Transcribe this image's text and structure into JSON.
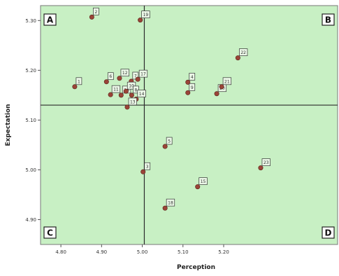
{
  "chart_data": {
    "type": "scatter",
    "xlabel": "Perception",
    "ylabel": "Expectation",
    "xlim": [
      4.75,
      5.48
    ],
    "ylim": [
      4.85,
      5.33
    ],
    "x_ticks": [
      {
        "value": 4.8,
        "label": "4.80"
      },
      {
        "value": 4.9,
        "label": "4.90"
      },
      {
        "value": 5.0,
        "label": "5.00"
      },
      {
        "value": 5.1,
        "label": "5.10"
      },
      {
        "value": 5.2,
        "label": "5.20"
      }
    ],
    "y_ticks": [
      {
        "value": 5.3,
        "label": "5.30"
      },
      {
        "value": 5.2,
        "label": "5.20"
      },
      {
        "value": 5.1,
        "label": "5.10"
      },
      {
        "value": 5.0,
        "label": "5.00"
      },
      {
        "value": 4.9,
        "label": "4.90"
      }
    ],
    "reference_lines": {
      "x": 5.005,
      "y": 5.13
    },
    "quadrants": [
      {
        "label": "A",
        "position": "top-left"
      },
      {
        "label": "B",
        "position": "top-right"
      },
      {
        "label": "C",
        "position": "bottom-left"
      },
      {
        "label": "D",
        "position": "bottom-right"
      }
    ],
    "grid": false,
    "points": [
      {
        "x": 4.834,
        "y": 5.167,
        "label": "1"
      },
      {
        "x": 4.876,
        "y": 5.307,
        "label": "2"
      },
      {
        "x": 4.995,
        "y": 5.301,
        "label": "19"
      },
      {
        "x": 4.912,
        "y": 5.177,
        "label": "6"
      },
      {
        "x": 4.944,
        "y": 5.184,
        "label": "12"
      },
      {
        "x": 4.973,
        "y": 5.178,
        "label": "7"
      },
      {
        "x": 4.989,
        "y": 5.182,
        "label": "17"
      },
      {
        "x": 4.922,
        "y": 5.151,
        "label": "11"
      },
      {
        "x": 4.948,
        "y": 5.15,
        "label": "16"
      },
      {
        "x": 4.96,
        "y": 5.158,
        "label": "10"
      },
      {
        "x": 4.974,
        "y": 5.15,
        "label": "8"
      },
      {
        "x": 4.985,
        "y": 5.142,
        "label": "14"
      },
      {
        "x": 4.963,
        "y": 5.126,
        "label": "13"
      },
      {
        "x": 5.002,
        "y": 4.996,
        "label": "3"
      },
      {
        "x": 5.056,
        "y": 5.047,
        "label": "5"
      },
      {
        "x": 5.056,
        "y": 4.923,
        "label": "18"
      },
      {
        "x": 5.112,
        "y": 5.176,
        "label": "4"
      },
      {
        "x": 5.112,
        "y": 5.155,
        "label": "9"
      },
      {
        "x": 5.183,
        "y": 5.153,
        "label": "20"
      },
      {
        "x": 5.195,
        "y": 5.167,
        "label": "21"
      },
      {
        "x": 5.235,
        "y": 5.225,
        "label": "22"
      },
      {
        "x": 5.136,
        "y": 4.966,
        "label": "15"
      },
      {
        "x": 5.291,
        "y": 5.004,
        "label": "23"
      }
    ]
  },
  "colors": {
    "plot_background": "#c8f0c4",
    "plot_border": "#777777",
    "reference_line": "#2b2b2b",
    "point_fill": "#9a4438",
    "point_stroke": "#5a2018",
    "label_box_fill": "#ecf8e8",
    "label_box_stroke": "#333333"
  }
}
